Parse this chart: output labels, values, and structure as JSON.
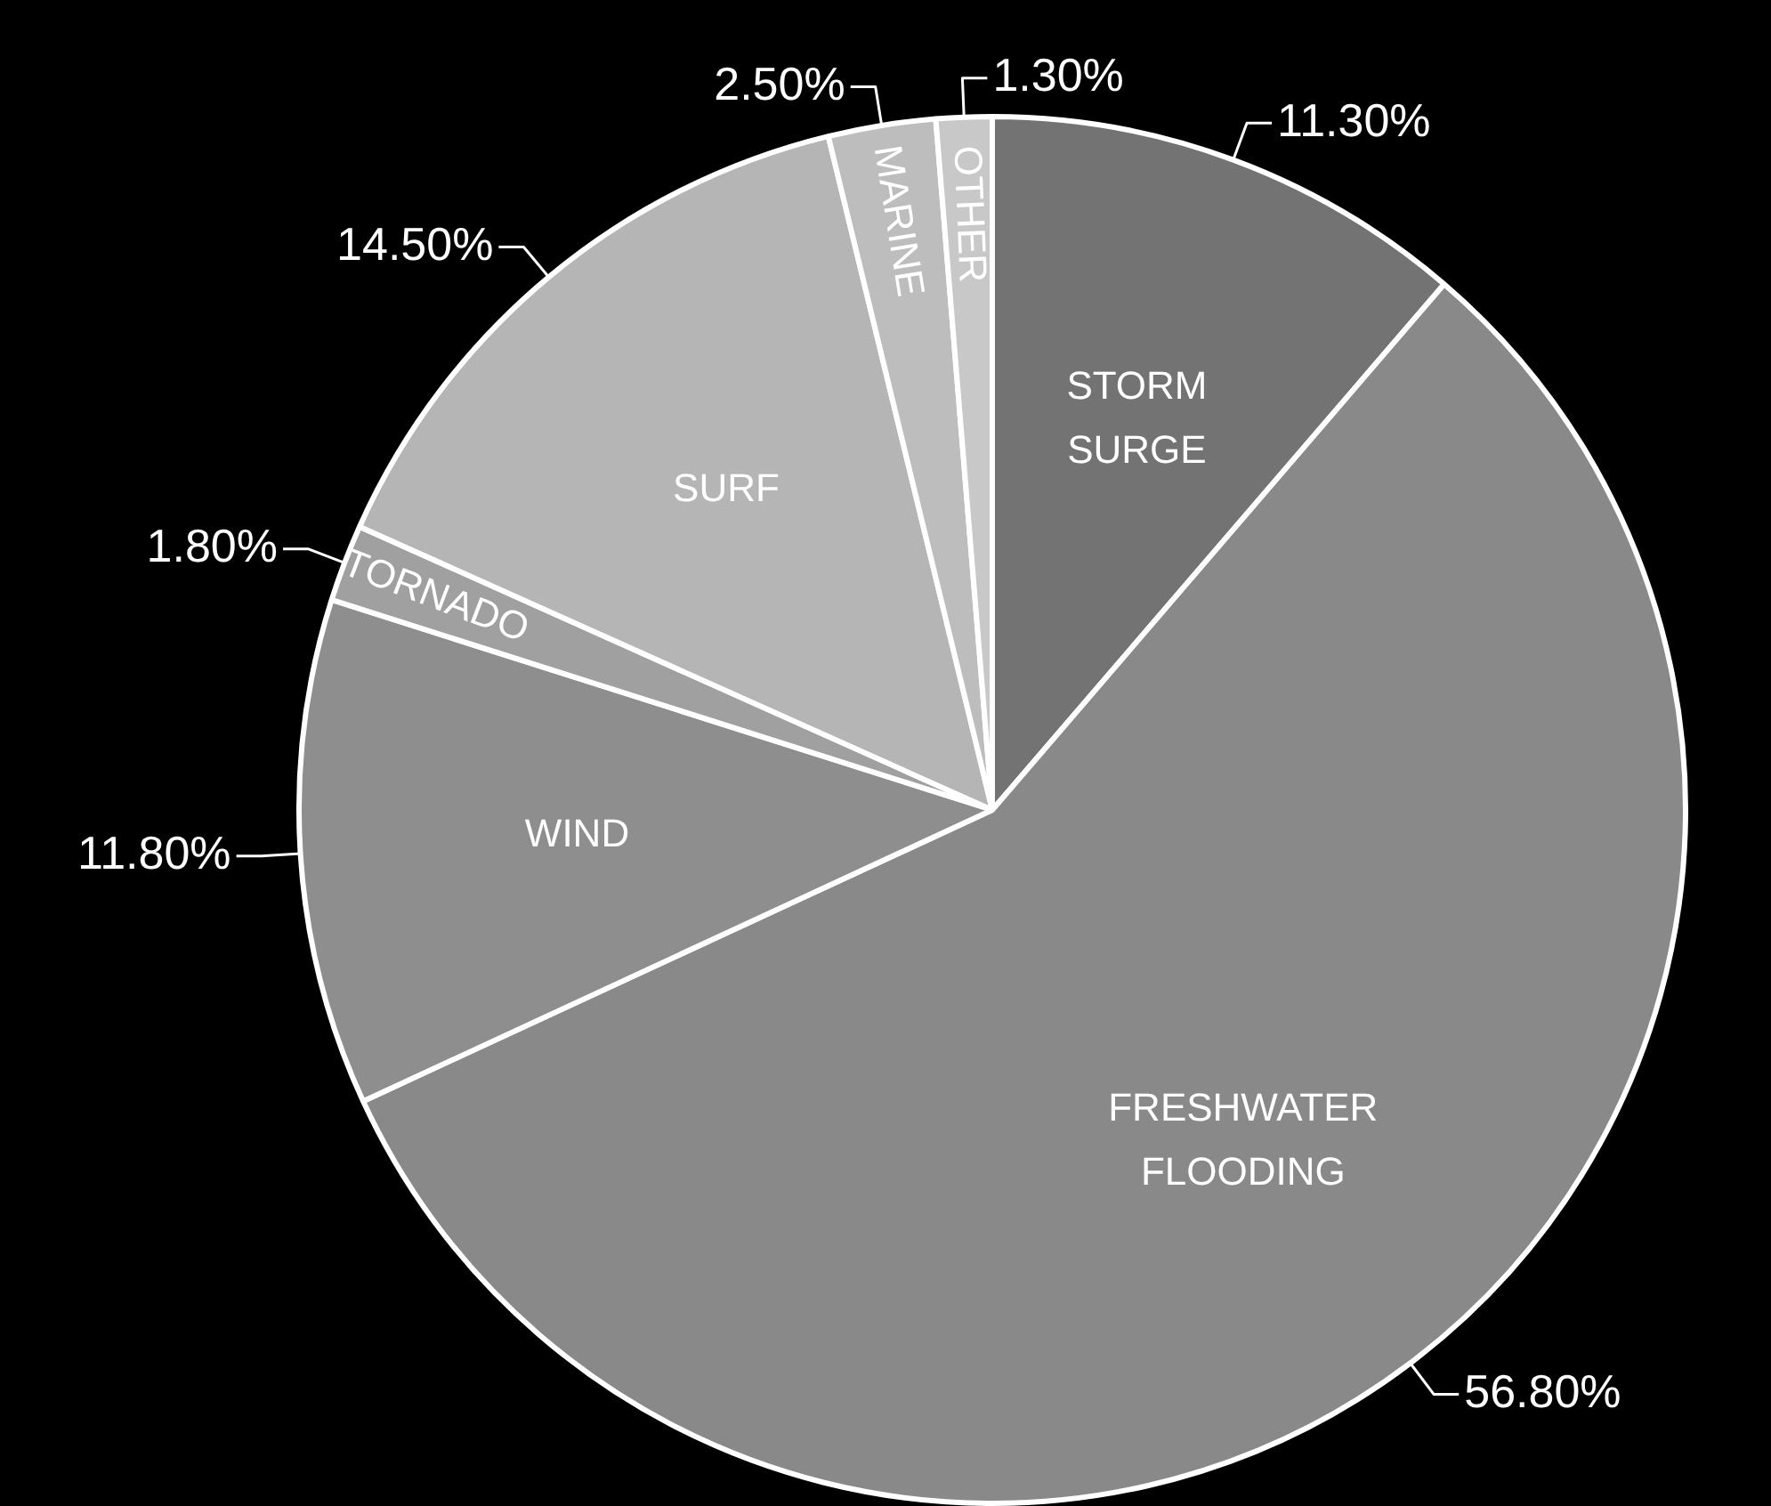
{
  "chart_data": {
    "type": "pie",
    "categories": [
      "STORM SURGE",
      "FRESHWATER FLOODING",
      "WIND",
      "TORNADO",
      "SURF",
      "MARINE",
      "OTHER"
    ],
    "values": [
      11.3,
      56.8,
      11.8,
      1.8,
      14.5,
      2.5,
      1.3
    ],
    "value_labels": [
      "11.30%",
      "56.80%",
      "11.80%",
      "1.80%",
      "14.50%",
      "2.50%",
      "1.30%"
    ],
    "colors": [
      "#737373",
      "#898989",
      "#8e8e8e",
      "#a0a0a0",
      "#b5b5b5",
      "#bdbdbd",
      "#c8c8c8"
    ],
    "legend": false
  }
}
